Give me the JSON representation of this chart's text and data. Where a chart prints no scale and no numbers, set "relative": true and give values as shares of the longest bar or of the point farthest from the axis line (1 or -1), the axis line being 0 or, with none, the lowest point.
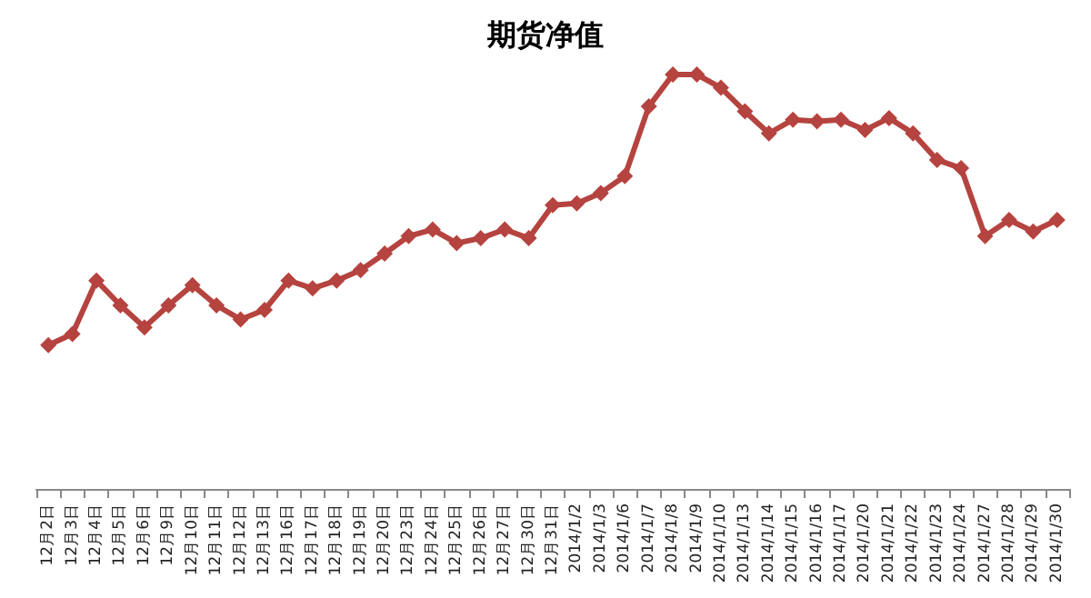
{
  "chart_data": {
    "type": "line",
    "title": "期货净值",
    "relative": true,
    "marker": "diamond",
    "categories": [
      "12月2日",
      "12月3日",
      "12月4日",
      "12月5日",
      "12月6日",
      "12月9日",
      "12月10日",
      "12月11日",
      "12月12日",
      "12月13日",
      "12月16日",
      "12月17日",
      "12月18日",
      "12月19日",
      "12月20日",
      "12月23日",
      "12月24日",
      "12月25日",
      "12月26日",
      "12月27日",
      "12月30日",
      "12月31日",
      "2014/1/2",
      "2014/1/3",
      "2014/1/6",
      "2014/1/7",
      "2014/1/8",
      "2014/1/9",
      "2014/1/10",
      "2014/1/13",
      "2014/1/14",
      "2014/1/15",
      "2014/1/16",
      "2014/1/17",
      "2014/1/20",
      "2014/1/21",
      "2014/1/22",
      "2014/1/23",
      "2014/1/24",
      "2014/1/27",
      "2014/1/28",
      "2014/1/29",
      "2014/1/30"
    ],
    "series": [
      {
        "color": "#b5433f",
        "values": [
          0.347,
          0.374,
          0.503,
          0.443,
          0.39,
          0.443,
          0.492,
          0.443,
          0.409,
          0.432,
          0.503,
          0.484,
          0.503,
          0.528,
          0.568,
          0.61,
          0.626,
          0.593,
          0.605,
          0.626,
          0.605,
          0.685,
          0.689,
          0.714,
          0.755,
          0.923,
          1,
          1,
          0.968,
          0.911,
          0.858,
          0.891,
          0.887,
          0.891,
          0.866,
          0.895,
          0.858,
          0.794,
          0.774,
          0.61,
          0.649,
          0.621,
          0.649
        ]
      }
    ]
  }
}
